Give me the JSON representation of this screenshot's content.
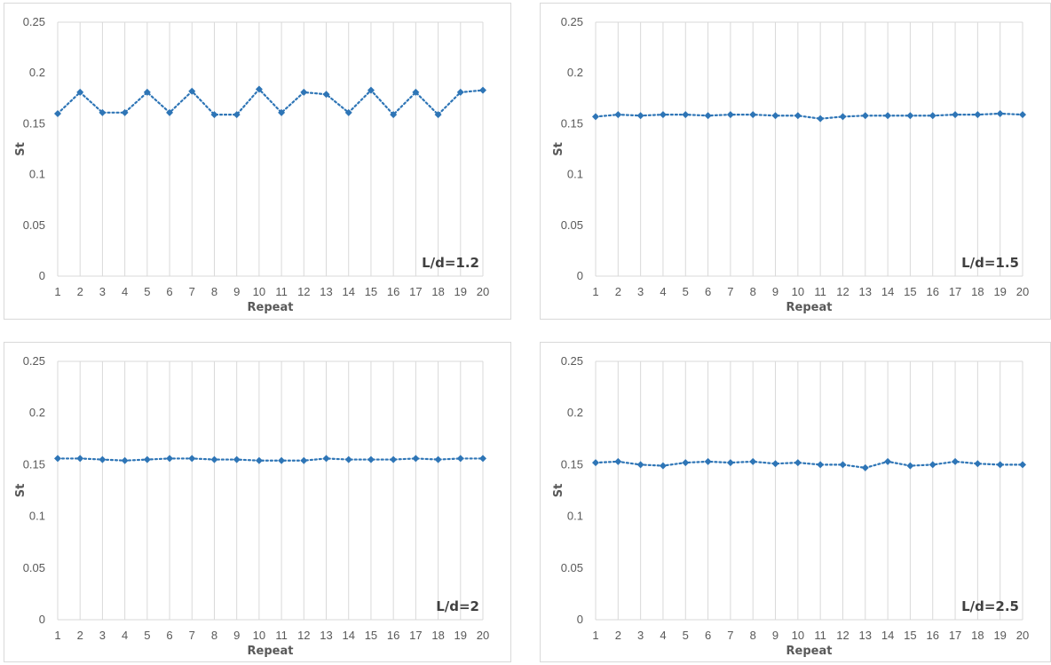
{
  "chart_data": [
    {
      "type": "line",
      "title": "",
      "xlabel": "Repeat",
      "ylabel": "St",
      "annotation": "L/d=1.2",
      "x": [
        1,
        2,
        3,
        4,
        5,
        6,
        7,
        8,
        9,
        10,
        11,
        12,
        13,
        14,
        15,
        16,
        17,
        18,
        19,
        20
      ],
      "ylim": [
        0,
        0.25
      ],
      "yticks": [
        "0",
        "0.05",
        "0.1",
        "0.15",
        "0.2",
        "0.25"
      ],
      "grid": true,
      "series": [
        {
          "values": [
            0.16,
            0.181,
            0.161,
            0.161,
            0.181,
            0.161,
            0.182,
            0.159,
            0.159,
            0.184,
            0.161,
            0.181,
            0.179,
            0.161,
            0.183,
            0.159,
            0.181,
            0.159,
            0.181,
            0.183
          ]
        }
      ]
    },
    {
      "type": "line",
      "title": "",
      "xlabel": "Repeat",
      "ylabel": "St",
      "annotation": "L/d=1.5",
      "x": [
        1,
        2,
        3,
        4,
        5,
        6,
        7,
        8,
        9,
        10,
        11,
        12,
        13,
        14,
        15,
        16,
        17,
        18,
        19,
        20
      ],
      "ylim": [
        0,
        0.25
      ],
      "yticks": [
        "0",
        "0.05",
        "0.1",
        "0.15",
        "0.2",
        "0.25"
      ],
      "grid": true,
      "series": [
        {
          "values": [
            0.157,
            0.159,
            0.158,
            0.159,
            0.159,
            0.158,
            0.159,
            0.159,
            0.158,
            0.158,
            0.155,
            0.157,
            0.158,
            0.158,
            0.158,
            0.158,
            0.159,
            0.159,
            0.16,
            0.159
          ]
        }
      ]
    },
    {
      "type": "line",
      "title": "",
      "xlabel": "Repeat",
      "ylabel": "St",
      "annotation": "L/d=2",
      "x": [
        1,
        2,
        3,
        4,
        5,
        6,
        7,
        8,
        9,
        10,
        11,
        12,
        13,
        14,
        15,
        16,
        17,
        18,
        19,
        20
      ],
      "ylim": [
        0,
        0.25
      ],
      "yticks": [
        "0",
        "0.05",
        "0.1",
        "0.15",
        "0.2",
        "0.25"
      ],
      "grid": true,
      "series": [
        {
          "values": [
            0.156,
            0.156,
            0.155,
            0.154,
            0.155,
            0.156,
            0.156,
            0.155,
            0.155,
            0.154,
            0.154,
            0.154,
            0.156,
            0.155,
            0.155,
            0.155,
            0.156,
            0.155,
            0.156,
            0.156
          ]
        }
      ]
    },
    {
      "type": "line",
      "title": "",
      "xlabel": "Repeat",
      "ylabel": "St",
      "annotation": "L/d=2.5",
      "x": [
        1,
        2,
        3,
        4,
        5,
        6,
        7,
        8,
        9,
        10,
        11,
        12,
        13,
        14,
        15,
        16,
        17,
        18,
        19,
        20
      ],
      "ylim": [
        0,
        0.25
      ],
      "yticks": [
        "0",
        "0.05",
        "0.1",
        "0.15",
        "0.2",
        "0.25"
      ],
      "grid": true,
      "series": [
        {
          "values": [
            0.152,
            0.153,
            0.15,
            0.149,
            0.152,
            0.153,
            0.152,
            0.153,
            0.151,
            0.152,
            0.15,
            0.15,
            0.147,
            0.153,
            0.149,
            0.15,
            0.153,
            0.151,
            0.15,
            0.15
          ]
        }
      ]
    }
  ],
  "colors": {
    "series": "#2e75b6",
    "grid": "#d9d9d9",
    "text": "#595959"
  }
}
